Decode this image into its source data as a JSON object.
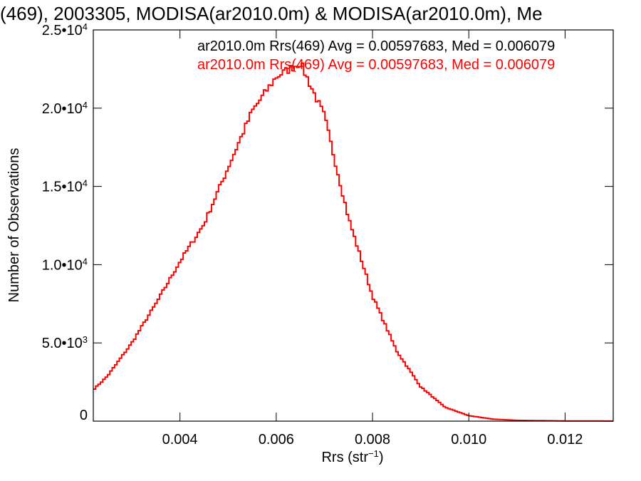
{
  "chart_data": {
    "type": "histogram-step",
    "title": "(469), 2003305, MODISA(ar2010.0m) & MODISA(ar2010.0m), Me",
    "xlabel": {
      "main": "Rrs (str",
      "sup": "−1",
      "tail": ")"
    },
    "ylabel": "Number of Observations",
    "xlim": [
      0.0022,
      0.013
    ],
    "ylim": [
      0,
      25000
    ],
    "x_ticks": [
      {
        "value": 0.004,
        "label": "0.004"
      },
      {
        "value": 0.006,
        "label": "0.006"
      },
      {
        "value": 0.008,
        "label": "0.008"
      },
      {
        "value": 0.01,
        "label": "0.010"
      },
      {
        "value": 0.012,
        "label": "0.012"
      }
    ],
    "y_ticks": [
      {
        "value": 0,
        "mant": "0",
        "exp": ""
      },
      {
        "value": 5000,
        "mant": "5.0•10",
        "exp": "3"
      },
      {
        "value": 10000,
        "mant": "1.0•10",
        "exp": "4"
      },
      {
        "value": 15000,
        "mant": "1.5•10",
        "exp": "4"
      },
      {
        "value": 20000,
        "mant": "2.0•10",
        "exp": "4"
      },
      {
        "value": 25000,
        "mant": "2.5•10",
        "exp": "4"
      }
    ],
    "annotations": [
      {
        "text": "ar2010.0m Rrs(469) Avg = 0.00597683, Med = 0.006079",
        "color": "#000000"
      },
      {
        "text": "ar2010.0m Rrs(469) Avg = 0.00597683, Med = 0.006079",
        "color": "#ff0000"
      }
    ],
    "series": [
      {
        "color": "#ff0000",
        "points": [
          [
            0.0022,
            2000
          ],
          [
            0.0025,
            2900
          ],
          [
            0.003,
            5000
          ],
          [
            0.0035,
            7500
          ],
          [
            0.004,
            10200
          ],
          [
            0.0045,
            12600
          ],
          [
            0.005,
            16200
          ],
          [
            0.0055,
            19800
          ],
          [
            0.006,
            22000
          ],
          [
            0.0065,
            22900
          ],
          [
            0.007,
            19500
          ],
          [
            0.0075,
            13000
          ],
          [
            0.008,
            8000
          ],
          [
            0.0085,
            4500
          ],
          [
            0.009,
            2200
          ],
          [
            0.0095,
            900
          ],
          [
            0.01,
            350
          ],
          [
            0.0105,
            130
          ],
          [
            0.011,
            50
          ],
          [
            0.012,
            15
          ],
          [
            0.013,
            5
          ]
        ]
      }
    ]
  }
}
